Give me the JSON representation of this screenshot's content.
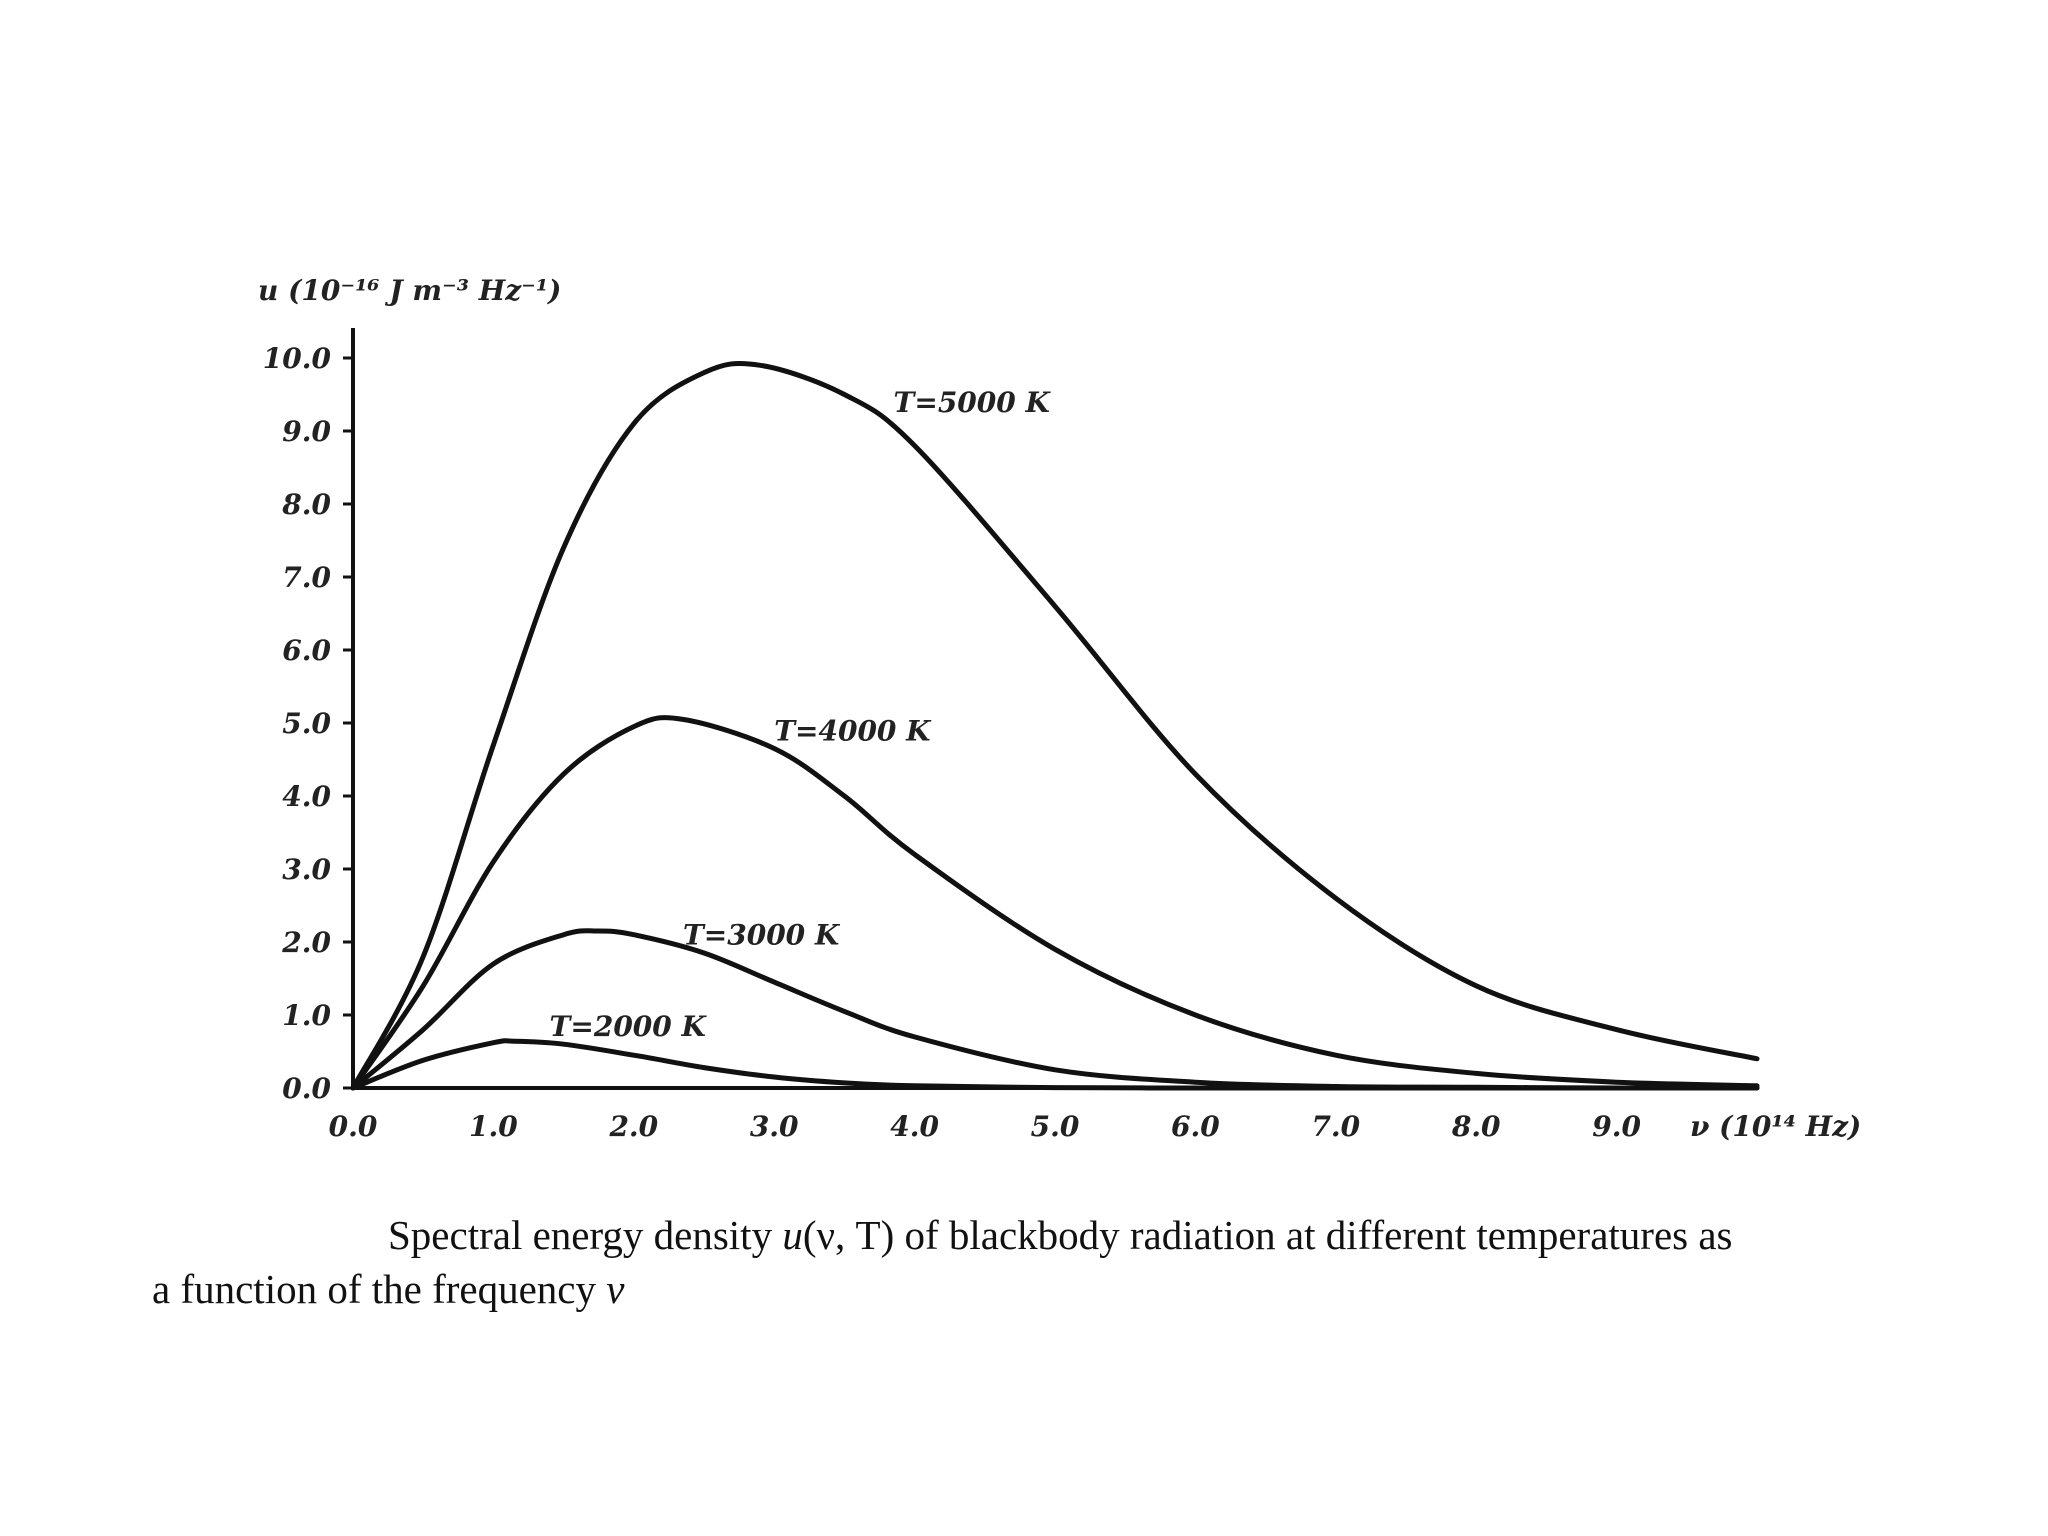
{
  "chart_data": {
    "type": "line",
    "title": "",
    "xlabel": "ν (10¹⁴ Hz)",
    "ylabel": "u (10⁻¹⁶ J m⁻³ Hz⁻¹)",
    "xlim": [
      0,
      10
    ],
    "ylim": [
      0,
      10
    ],
    "x_ticks": [
      "0.0",
      "1.0",
      "2.0",
      "3.0",
      "4.0",
      "5.0",
      "6.0",
      "7.0",
      "8.0",
      "9.0"
    ],
    "y_ticks": [
      "0.0",
      "1.0",
      "2.0",
      "3.0",
      "4.0",
      "5.0",
      "6.0",
      "7.0",
      "8.0",
      "9.0",
      "10.0"
    ],
    "series": [
      {
        "name": "T=5000 K",
        "temperature_K": 5000,
        "peak": {
          "x": 2.9,
          "y": 9.9
        },
        "x": [
          0,
          0.5,
          1.0,
          1.5,
          2.0,
          2.5,
          2.9,
          3.5,
          4.0,
          5.0,
          6.0,
          7.0,
          8.0,
          9.0,
          10.0
        ],
        "values": [
          0,
          1.8,
          4.7,
          7.4,
          9.1,
          9.8,
          9.9,
          9.5,
          8.8,
          6.6,
          4.3,
          2.6,
          1.4,
          0.8,
          0.4
        ]
      },
      {
        "name": "T=4000 K",
        "temperature_K": 4000,
        "peak": {
          "x": 2.35,
          "y": 5.05
        },
        "x": [
          0,
          0.5,
          1.0,
          1.5,
          2.0,
          2.35,
          3.0,
          3.5,
          4.0,
          5.0,
          6.0,
          7.0,
          8.0,
          9.0,
          10.0
        ],
        "values": [
          0,
          1.4,
          3.1,
          4.3,
          4.95,
          5.05,
          4.65,
          4.0,
          3.2,
          1.9,
          1.0,
          0.45,
          0.2,
          0.08,
          0.03
        ]
      },
      {
        "name": "T=3000 K",
        "temperature_K": 3000,
        "peak": {
          "x": 1.75,
          "y": 2.15
        },
        "x": [
          0,
          0.5,
          1.0,
          1.5,
          1.75,
          2.0,
          2.5,
          3.0,
          3.5,
          4.0,
          5.0,
          6.0,
          7.0,
          8.0,
          9.0,
          10.0
        ],
        "values": [
          0,
          0.8,
          1.7,
          2.1,
          2.15,
          2.1,
          1.85,
          1.45,
          1.05,
          0.7,
          0.25,
          0.08,
          0.02,
          0.01,
          0,
          0
        ]
      },
      {
        "name": "T=2000 K",
        "temperature_K": 2000,
        "peak": {
          "x": 1.15,
          "y": 0.64
        },
        "x": [
          0,
          0.5,
          1.0,
          1.15,
          1.5,
          2.0,
          2.5,
          3.0,
          3.5,
          4.0,
          5.0,
          6.0,
          7.0,
          8.0,
          9.0,
          10.0
        ],
        "values": [
          0,
          0.38,
          0.62,
          0.64,
          0.6,
          0.45,
          0.28,
          0.15,
          0.07,
          0.03,
          0.005,
          0,
          0,
          0,
          0,
          0
        ]
      }
    ],
    "grid": false,
    "legend": "inline labels beside each curve"
  },
  "axis_label_y_text": "u (10⁻¹⁶ J m⁻³ Hz⁻¹)",
  "axis_label_x_text": "ν (10¹⁴ Hz)",
  "caption": {
    "line1_prefix": "Spectral energy density ",
    "func": "u",
    "args": "(ν, T)",
    "line1_suffix": " of blackbody radiation at different temperatures as",
    "line2": "a function of the frequency ",
    "nu": "ν"
  }
}
